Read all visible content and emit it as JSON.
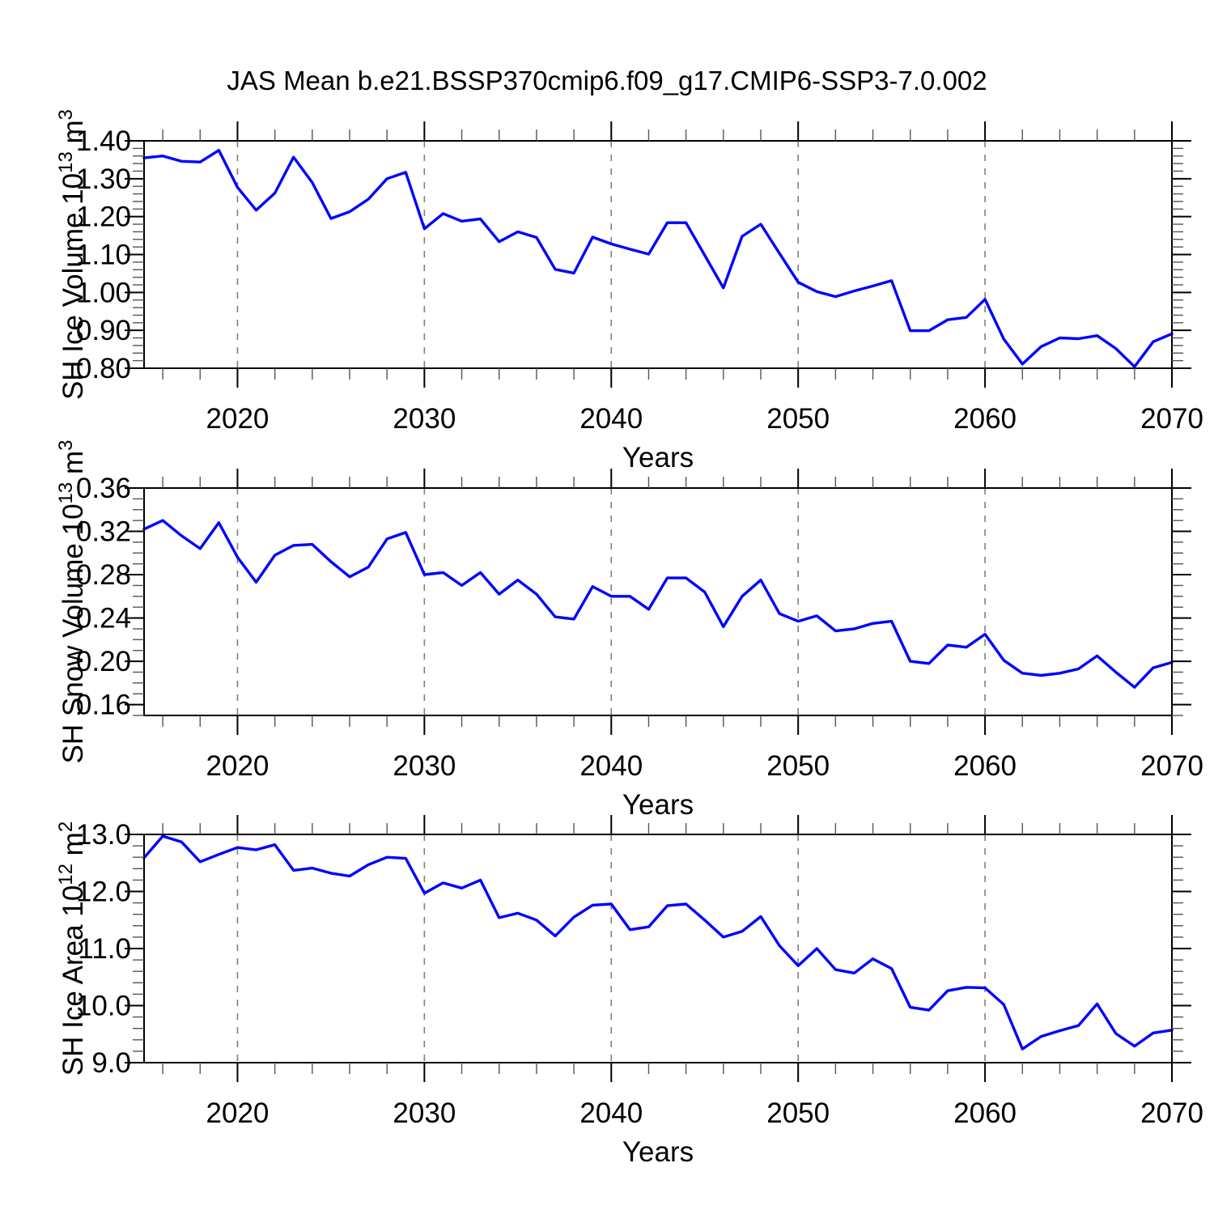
{
  "title": "JAS Mean b.e21.BSSP370cmip6.f09_g17.CMIP6-SSP3-7.0.002",
  "style": {
    "line_color": "#0000ff",
    "grid_color": "#7f7f7f",
    "axis_color": "#000000",
    "minor_tick_color": "#555555"
  },
  "x_axis": {
    "label": "Years",
    "range": [
      2015,
      2070
    ],
    "major_ticks": [
      2020,
      2030,
      2040,
      2050,
      2060,
      2070
    ],
    "tick_labels": [
      "2020",
      "2030",
      "2040",
      "2050",
      "2060",
      "2070"
    ],
    "minor_step": 2,
    "grid_lines": [
      2020,
      2030,
      2040,
      2050,
      2060
    ],
    "years": [
      2015,
      2016,
      2017,
      2018,
      2019,
      2020,
      2021,
      2022,
      2023,
      2024,
      2025,
      2026,
      2027,
      2028,
      2029,
      2030,
      2031,
      2032,
      2033,
      2034,
      2035,
      2036,
      2037,
      2038,
      2039,
      2040,
      2041,
      2042,
      2043,
      2044,
      2045,
      2046,
      2047,
      2048,
      2049,
      2050,
      2051,
      2052,
      2053,
      2054,
      2055,
      2056,
      2057,
      2058,
      2059,
      2060,
      2061,
      2062,
      2063,
      2064,
      2065,
      2066,
      2067,
      2068,
      2069,
      2070
    ]
  },
  "chart_data": [
    {
      "type": "line",
      "name": "sh-ice-volume",
      "ylabel": "SH Ice Volume 10^13 m^3",
      "ylabel_parts": [
        {
          "text": "SH Ice Volume 10",
          "sup": false
        },
        {
          "text": "13",
          "sup": true
        },
        {
          "text": " m",
          "sup": false
        },
        {
          "text": "3",
          "sup": true
        }
      ],
      "xlabel": "Years",
      "ylim": [
        0.8,
        1.4
      ],
      "yticks": [
        0.8,
        0.9,
        1.0,
        1.1,
        1.2,
        1.3,
        1.4
      ],
      "ytick_labels": [
        "0.80",
        "0.90",
        "1.00",
        "1.10",
        "1.20",
        "1.30",
        "1.40"
      ],
      "y_minor_step": 0.02,
      "values": [
        1.355,
        1.36,
        1.346,
        1.344,
        1.375,
        1.277,
        1.217,
        1.262,
        1.357,
        1.29,
        1.195,
        1.213,
        1.246,
        1.3,
        1.317,
        1.168,
        1.208,
        1.188,
        1.194,
        1.134,
        1.16,
        1.145,
        1.061,
        1.051,
        1.146,
        1.128,
        1.114,
        1.101,
        1.184,
        1.184,
        1.098,
        1.012,
        1.148,
        1.18,
        1.103,
        1.027,
        1.002,
        0.989,
        1.004,
        1.017,
        1.031,
        0.899,
        0.899,
        0.928,
        0.934,
        0.982,
        0.877,
        0.811,
        0.857,
        0.88,
        0.878,
        0.886,
        0.852,
        0.804,
        0.87,
        0.891
      ]
    },
    {
      "type": "line",
      "name": "sh-snow-volume",
      "ylabel": "SH Snow Volume 10^13 m^3",
      "ylabel_parts": [
        {
          "text": "SH Snow Volume 10",
          "sup": false
        },
        {
          "text": "13",
          "sup": true
        },
        {
          "text": " m",
          "sup": false
        },
        {
          "text": "3",
          "sup": true
        }
      ],
      "xlabel": "Years",
      "ylim": [
        0.15,
        0.36
      ],
      "yticks": [
        0.16,
        0.2,
        0.24,
        0.28,
        0.32,
        0.36
      ],
      "ytick_labels": [
        "0.16",
        "0.20",
        "0.24",
        "0.28",
        "0.32",
        "0.36"
      ],
      "y_minor_step": 0.01,
      "values": [
        0.322,
        0.33,
        0.316,
        0.304,
        0.328,
        0.296,
        0.273,
        0.298,
        0.307,
        0.308,
        0.292,
        0.278,
        0.287,
        0.313,
        0.319,
        0.28,
        0.282,
        0.27,
        0.282,
        0.262,
        0.275,
        0.262,
        0.241,
        0.239,
        0.269,
        0.26,
        0.26,
        0.248,
        0.277,
        0.277,
        0.264,
        0.232,
        0.26,
        0.275,
        0.244,
        0.237,
        0.242,
        0.228,
        0.23,
        0.235,
        0.237,
        0.2,
        0.198,
        0.215,
        0.213,
        0.225,
        0.201,
        0.189,
        0.187,
        0.189,
        0.193,
        0.205,
        0.19,
        0.176,
        0.194,
        0.199
      ]
    },
    {
      "type": "line",
      "name": "sh-ice-area",
      "ylabel": "SH Ice Area 10^12 m^2",
      "ylabel_parts": [
        {
          "text": "SH Ice Area 10",
          "sup": false
        },
        {
          "text": "12",
          "sup": true
        },
        {
          "text": " m",
          "sup": false
        },
        {
          "text": "2",
          "sup": true
        }
      ],
      "xlabel": "Years",
      "ylim": [
        9.0,
        13.0
      ],
      "yticks": [
        9.0,
        10.0,
        11.0,
        12.0,
        13.0
      ],
      "ytick_labels": [
        "9.0",
        "10.0",
        "11.0",
        "12.0",
        "13.0"
      ],
      "y_minor_step": 0.2,
      "values": [
        12.59,
        12.97,
        12.87,
        12.52,
        12.65,
        12.77,
        12.73,
        12.82,
        12.37,
        12.41,
        12.32,
        12.27,
        12.47,
        12.6,
        12.58,
        11.97,
        12.15,
        12.06,
        12.2,
        11.54,
        11.62,
        11.5,
        11.22,
        11.55,
        11.76,
        11.78,
        11.33,
        11.38,
        11.75,
        11.78,
        11.5,
        11.2,
        11.3,
        11.56,
        11.05,
        10.7,
        11.0,
        10.63,
        10.57,
        10.82,
        10.65,
        9.97,
        9.92,
        10.26,
        10.32,
        10.31,
        10.02,
        9.24,
        9.46,
        9.56,
        9.65,
        10.03,
        9.51,
        9.29,
        9.52,
        9.57
      ]
    }
  ]
}
